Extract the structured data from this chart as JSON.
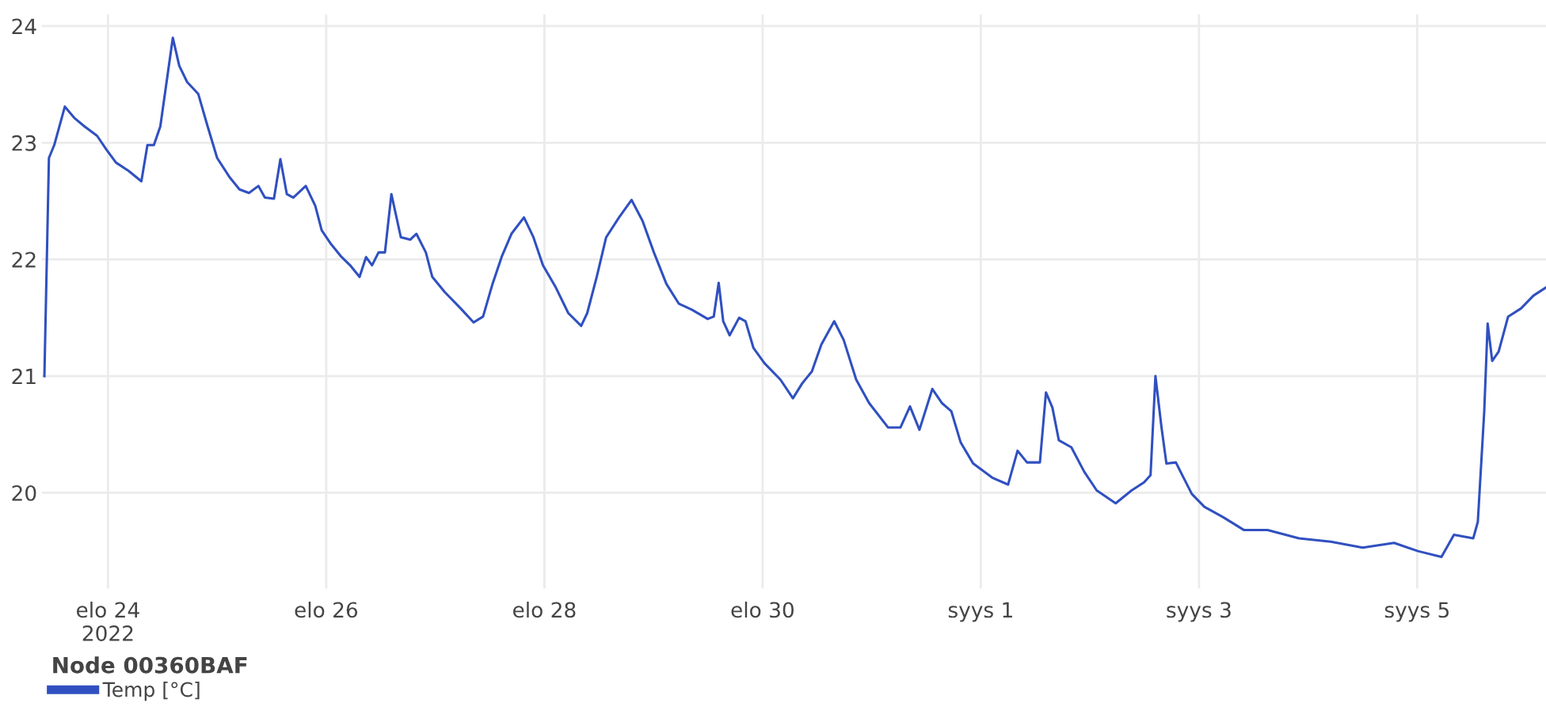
{
  "chart_data": {
    "type": "line",
    "legend_title": "Node 00360BAF",
    "legend": "bottom left",
    "grid": true,
    "line_style": "solid",
    "marker": "none",
    "xlim": [
      "2022-08-23T09:25",
      "2022-09-06T04:20"
    ],
    "xticks": [
      {
        "value": "2022-08-24",
        "label": "elo 24\n2022"
      },
      {
        "value": "2022-08-26",
        "label": "elo 26"
      },
      {
        "value": "2022-08-28",
        "label": "elo 28"
      },
      {
        "value": "2022-08-30",
        "label": "elo 30"
      },
      {
        "value": "2022-09-01",
        "label": "syys 1"
      },
      {
        "value": "2022-09-03",
        "label": "syys 3"
      },
      {
        "value": "2022-09-05",
        "label": "syys 5"
      }
    ],
    "ylim": [
      19.18,
      24.1
    ],
    "yticks": [
      20,
      21,
      22,
      23,
      24
    ],
    "x": [
      "2022-08-23T10:00",
      "2022-08-23T11:00",
      "2022-08-23T12:10",
      "2022-08-23T14:30",
      "2022-08-23T16:40",
      "2022-08-23T18:50",
      "2022-08-23T21:35",
      "2022-08-23T23:40",
      "2022-08-24T01:45",
      "2022-08-24T04:30",
      "2022-08-24T07:20",
      "2022-08-24T08:40",
      "2022-08-24T10:05",
      "2022-08-24T11:30",
      "2022-08-24T14:15",
      "2022-08-24T15:40",
      "2022-08-24T17:25",
      "2022-08-24T19:50",
      "2022-08-24T21:55",
      "2022-08-25T00:00",
      "2022-08-25T02:50",
      "2022-08-25T04:55",
      "2022-08-25T07:00",
      "2022-08-25T09:05",
      "2022-08-25T10:30",
      "2022-08-25T12:30",
      "2022-08-25T13:55",
      "2022-08-25T15:20",
      "2022-08-25T16:45",
      "2022-08-25T19:30",
      "2022-08-25T21:35",
      "2022-08-25T23:00",
      "2022-08-26T01:05",
      "2022-08-26T03:10",
      "2022-08-26T05:15",
      "2022-08-26T07:20",
      "2022-08-26T08:45",
      "2022-08-26T10:05",
      "2022-08-26T11:30",
      "2022-08-26T12:55",
      "2022-08-26T14:20",
      "2022-08-26T16:25",
      "2022-08-26T18:30",
      "2022-08-26T19:50",
      "2022-08-26T21:55",
      "2022-08-26T23:20",
      "2022-08-27T02:05",
      "2022-08-27T05:35",
      "2022-08-27T08:25",
      "2022-08-27T10:30",
      "2022-08-27T12:35",
      "2022-08-27T14:40",
      "2022-08-27T16:45",
      "2022-08-27T19:30",
      "2022-08-27T21:35",
      "2022-08-27T23:40",
      "2022-08-28T02:30",
      "2022-08-28T05:15",
      "2022-08-28T08:05",
      "2022-08-28T09:25",
      "2022-08-28T11:30",
      "2022-08-28T13:35",
      "2022-08-28T16:25",
      "2022-08-28T19:10",
      "2022-08-28T21:35",
      "2022-08-29T00:05",
      "2022-08-29T02:50",
      "2022-08-29T05:35",
      "2022-08-29T08:25",
      "2022-08-29T11:55",
      "2022-08-29T13:15",
      "2022-08-29T14:20",
      "2022-08-29T15:20",
      "2022-08-29T16:45",
      "2022-08-29T18:50",
      "2022-08-29T20:15",
      "2022-08-29T22:00",
      "2022-08-30T00:25",
      "2022-08-30T03:55",
      "2022-08-30T06:40",
      "2022-08-30T08:45",
      "2022-08-30T10:50",
      "2022-08-30T12:55",
      "2022-08-30T15:45",
      "2022-08-30T17:50",
      "2022-08-30T20:35",
      "2022-08-30T23:25",
      "2022-08-31T03:35",
      "2022-08-31T06:20",
      "2022-08-31T08:25",
      "2022-08-31T10:30",
      "2022-08-31T13:20",
      "2022-08-31T15:25",
      "2022-08-31T17:30",
      "2022-08-31T19:35",
      "2022-08-31T22:20",
      "2022-09-01T02:30",
      "2022-09-01T06:00",
      "2022-09-01T08:05",
      "2022-09-01T10:10",
      "2022-09-01T13:00",
      "2022-09-01T14:20",
      "2022-09-01T15:45",
      "2022-09-01T17:10",
      "2022-09-01T19:55",
      "2022-09-01T22:45",
      "2022-09-02T01:30",
      "2022-09-02T05:40",
      "2022-09-02T09:10",
      "2022-09-02T11:55",
      "2022-09-02T13:20",
      "2022-09-02T14:25",
      "2022-09-02T15:45",
      "2022-09-02T16:50",
      "2022-09-02T18:55",
      "2022-09-02T20:20",
      "2022-09-02T22:25",
      "2022-09-03T01:10",
      "2022-09-03T05:20",
      "2022-09-03T09:55",
      "2022-09-03T15:05",
      "2022-09-03T22:00",
      "2022-09-04T05:00",
      "2022-09-04T12:00",
      "2022-09-04T18:55",
      "2022-09-05T00:10",
      "2022-09-05T05:20",
      "2022-09-05T08:05",
      "2022-09-05T12:20",
      "2022-09-05T13:20",
      "2022-09-05T14:45",
      "2022-09-05T15:30",
      "2022-09-05T16:30",
      "2022-09-05T17:55",
      "2022-09-05T20:00",
      "2022-09-05T22:50",
      "2022-09-06T01:35",
      "2022-09-06T04:20"
    ],
    "series": [
      {
        "name": "Temp [°C]",
        "color": "#3050c0",
        "values": [
          21.0,
          22.87,
          22.98,
          23.31,
          23.21,
          23.14,
          23.06,
          22.94,
          22.83,
          22.76,
          22.67,
          22.98,
          22.98,
          23.14,
          23.9,
          23.66,
          23.52,
          23.42,
          23.14,
          22.87,
          22.7,
          22.6,
          22.57,
          22.63,
          22.53,
          22.52,
          22.86,
          22.56,
          22.53,
          22.63,
          22.46,
          22.25,
          22.13,
          22.03,
          21.95,
          21.85,
          22.02,
          21.95,
          22.06,
          22.06,
          22.56,
          22.19,
          22.17,
          22.22,
          22.06,
          21.85,
          21.72,
          21.58,
          21.46,
          21.51,
          21.79,
          22.03,
          22.22,
          22.36,
          22.19,
          21.95,
          21.76,
          21.54,
          21.43,
          21.54,
          21.85,
          22.19,
          22.36,
          22.51,
          22.33,
          22.06,
          21.79,
          21.62,
          21.57,
          21.49,
          21.51,
          21.8,
          21.47,
          21.35,
          21.5,
          21.47,
          21.24,
          21.11,
          20.97,
          20.81,
          20.94,
          21.04,
          21.27,
          21.47,
          21.31,
          20.97,
          20.77,
          20.56,
          20.56,
          20.74,
          20.54,
          20.89,
          20.77,
          20.7,
          20.43,
          20.25,
          20.13,
          20.07,
          20.36,
          20.26,
          20.26,
          20.86,
          20.73,
          20.45,
          20.39,
          20.18,
          20.02,
          19.91,
          20.02,
          20.09,
          20.15,
          21.0,
          20.56,
          20.25,
          20.26,
          20.15,
          19.99,
          19.88,
          19.79,
          19.68,
          19.68,
          19.61,
          19.58,
          19.53,
          19.57,
          19.5,
          19.45,
          19.64,
          19.61,
          19.75,
          20.7,
          21.45,
          21.13,
          21.21,
          21.51,
          21.58,
          21.69,
          21.76
        ]
      }
    ]
  }
}
